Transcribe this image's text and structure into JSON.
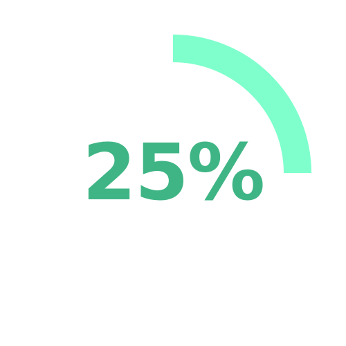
{
  "progress": {
    "percent_text": "25%",
    "value": 0.25,
    "arc_color": "#7effcc",
    "text_color": "#3fb585",
    "track_color": "#ffffff"
  }
}
